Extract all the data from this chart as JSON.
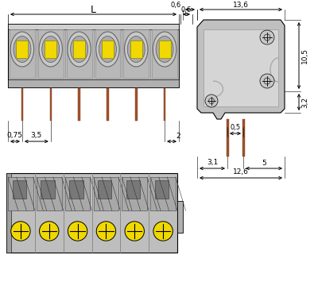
{
  "bg_color": "#ffffff",
  "gray_body": "#c0c0c0",
  "gray_light": "#d0d0d0",
  "gray_inner": "#b0b0b0",
  "yellow_color": "#f0d800",
  "brown_color": "#a0522d",
  "black": "#000000",
  "dark_line": "#444444",
  "num_terminals": 6,
  "dims": {
    "L": "L",
    "d06": "0,6",
    "d136": "13,6",
    "d105": "10,5",
    "d32": "3,2",
    "d05": "0,5",
    "d31": "3,1",
    "d5": "5",
    "d126": "12,6",
    "d075": "0,75",
    "d35": "3,5",
    "d2": "2"
  }
}
